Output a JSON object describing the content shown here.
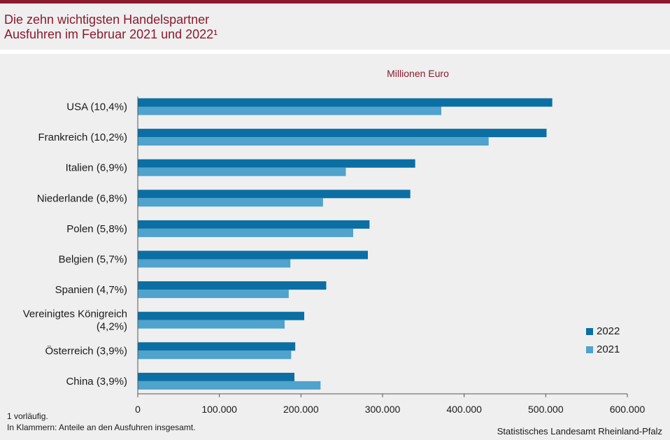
{
  "title_line1": "Die zehn wichtigsten Handelspartner",
  "title_line2": "Ausfuhren im Februar 2021 und 2022¹",
  "unit_label": "Millionen Euro",
  "footnote_line1": "1 vorläufig.",
  "footnote_line2": "In Klammern: Anteile an den Ausfuhren insgesamt.",
  "source": "Statistisches Landesamt Rheinland-Pfalz",
  "colors": {
    "accent": "#8b1a2e",
    "series_2022": "#0b6fa4",
    "series_2021": "#4fa3cc",
    "background": "#efefef"
  },
  "chart_data": {
    "type": "bar",
    "orientation": "horizontal",
    "title": "Die zehn wichtigsten Handelspartner",
    "subtitle": "Ausfuhren im Februar 2021 und 2022¹",
    "xlabel": "Millionen Euro",
    "categories": [
      "USA (10,4%)",
      "Frankreich (10,2%)",
      "Italien (6,9%)",
      "Niederlande (6,8%)",
      "Polen (5,8%)",
      "Belgien (5,7%)",
      "Spanien (4,7%)",
      "Vereinigtes Königreich (4,2%)",
      "Österreich (3,9%)",
      "China (3,9%)"
    ],
    "category_lines": [
      [
        "USA (10,4%)"
      ],
      [
        "Frankreich (10,2%)"
      ],
      [
        "Italien (6,9%)"
      ],
      [
        "Niederlande (6,8%)"
      ],
      [
        "Polen (5,8%)"
      ],
      [
        "Belgien (5,7%)"
      ],
      [
        "Spanien (4,7%)"
      ],
      [
        "Vereinigtes Königreich",
        "(4,2%)"
      ],
      [
        "Österreich (3,9%)"
      ],
      [
        "China (3,9%)"
      ]
    ],
    "series": [
      {
        "name": "2022",
        "values": [
          508000,
          501000,
          340000,
          334000,
          284000,
          282000,
          231000,
          204000,
          193000,
          192000
        ]
      },
      {
        "name": "2021",
        "values": [
          372000,
          430000,
          255000,
          227000,
          264000,
          187000,
          185000,
          180000,
          188000,
          224000
        ]
      }
    ],
    "xlim": [
      0,
      600000
    ],
    "xticks": [
      0,
      100000,
      200000,
      300000,
      400000,
      500000,
      600000
    ],
    "xtick_labels": [
      "0",
      "100.000",
      "200.000",
      "300.000",
      "400.000",
      "500.000",
      "600.000"
    ],
    "grid": false,
    "legend_position": "right"
  }
}
